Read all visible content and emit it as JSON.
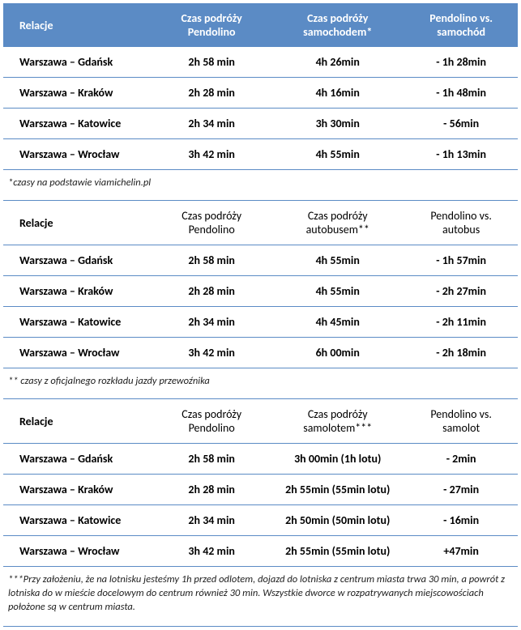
{
  "colors": {
    "header_bg": "#5b8bc5",
    "header_text": "#ffffff",
    "border": "#5b8bc5",
    "diff_negative": "#00a86b",
    "diff_positive": "#d42020",
    "text": "#000000"
  },
  "section1": {
    "headers": [
      "Relacje",
      "Czas podróży Pendolino",
      "Czas podróży samochodem*",
      "Pendolino vs. samochód"
    ],
    "rows": [
      {
        "route": "Warszawa – Gdańsk",
        "pendolino": "2h 58 min",
        "other": "4h 26min",
        "diff": "- 1h 28min",
        "sign": "neg"
      },
      {
        "route": "Warszawa – Kraków",
        "pendolino": "2h 28 min",
        "other": "4h 16min",
        "diff": "- 1h 48min",
        "sign": "neg"
      },
      {
        "route": "Warszawa – Katowice",
        "pendolino": "2h 34 min",
        "other": "3h 30min",
        "diff": "- 56min",
        "sign": "neg"
      },
      {
        "route": "Warszawa – Wrocław",
        "pendolino": "3h 42 min",
        "other": "4h 55min",
        "diff": "- 1h 13min",
        "sign": "neg"
      }
    ],
    "note": "*czasy na podstawie viamichelin.pl"
  },
  "section2": {
    "headers": [
      "Relacje",
      "Czas podróży Pendolino",
      "Czas podróży autobusem**",
      "Pendolino vs. autobus"
    ],
    "rows": [
      {
        "route": "Warszawa – Gdańsk",
        "pendolino": "2h 58 min",
        "other": "4h 55min",
        "diff": "- 1h 57min",
        "sign": "neg"
      },
      {
        "route": "Warszawa – Kraków",
        "pendolino": "2h 28 min",
        "other": "4h 55min",
        "diff": "- 2h 27min",
        "sign": "neg"
      },
      {
        "route": "Warszawa – Katowice",
        "pendolino": "2h 34 min",
        "other": "4h 45min",
        "diff": "- 2h 11min",
        "sign": "neg"
      },
      {
        "route": "Warszawa – Wrocław",
        "pendolino": "3h 42 min",
        "other": "6h 00min",
        "diff": "- 2h 18min",
        "sign": "neg"
      }
    ],
    "note": "** czasy z oficjalnego rozkładu jazdy przewoźnika"
  },
  "section3": {
    "headers": [
      "Relacje",
      "Czas podróży Pendolino",
      "Czas podróży samolotem***",
      "Pendolino vs. samolot"
    ],
    "rows": [
      {
        "route": "Warszawa – Gdańsk",
        "pendolino": "2h 58 min",
        "other": "3h 00min (1h lotu)",
        "diff": "- 2min",
        "sign": "neg"
      },
      {
        "route": "Warszawa – Kraków",
        "pendolino": "2h 28 min",
        "other": "2h 55min (55min lotu)",
        "diff": "- 27min",
        "sign": "neg"
      },
      {
        "route": "Warszawa – Katowice",
        "pendolino": "2h 34 min",
        "other": "2h 50min (50min lotu)",
        "diff": "- 16min",
        "sign": "neg"
      },
      {
        "route": "Warszawa – Wrocław",
        "pendolino": "3h 42 min",
        "other": "2h 55min (55min lotu)",
        "diff": "+47min",
        "sign": "pos"
      }
    ],
    "note": "***Przy założeniu, że na lotnisku jesteśmy 1h przed odlotem, dojazd do lotniska z centrum miasta trwa 30 min, a powrót z lotniska do w mieście docelowym do centrum również 30 min. Wszystkie dworce w rozpatrywanych miejscowościach położone są w centrum miasta."
  }
}
